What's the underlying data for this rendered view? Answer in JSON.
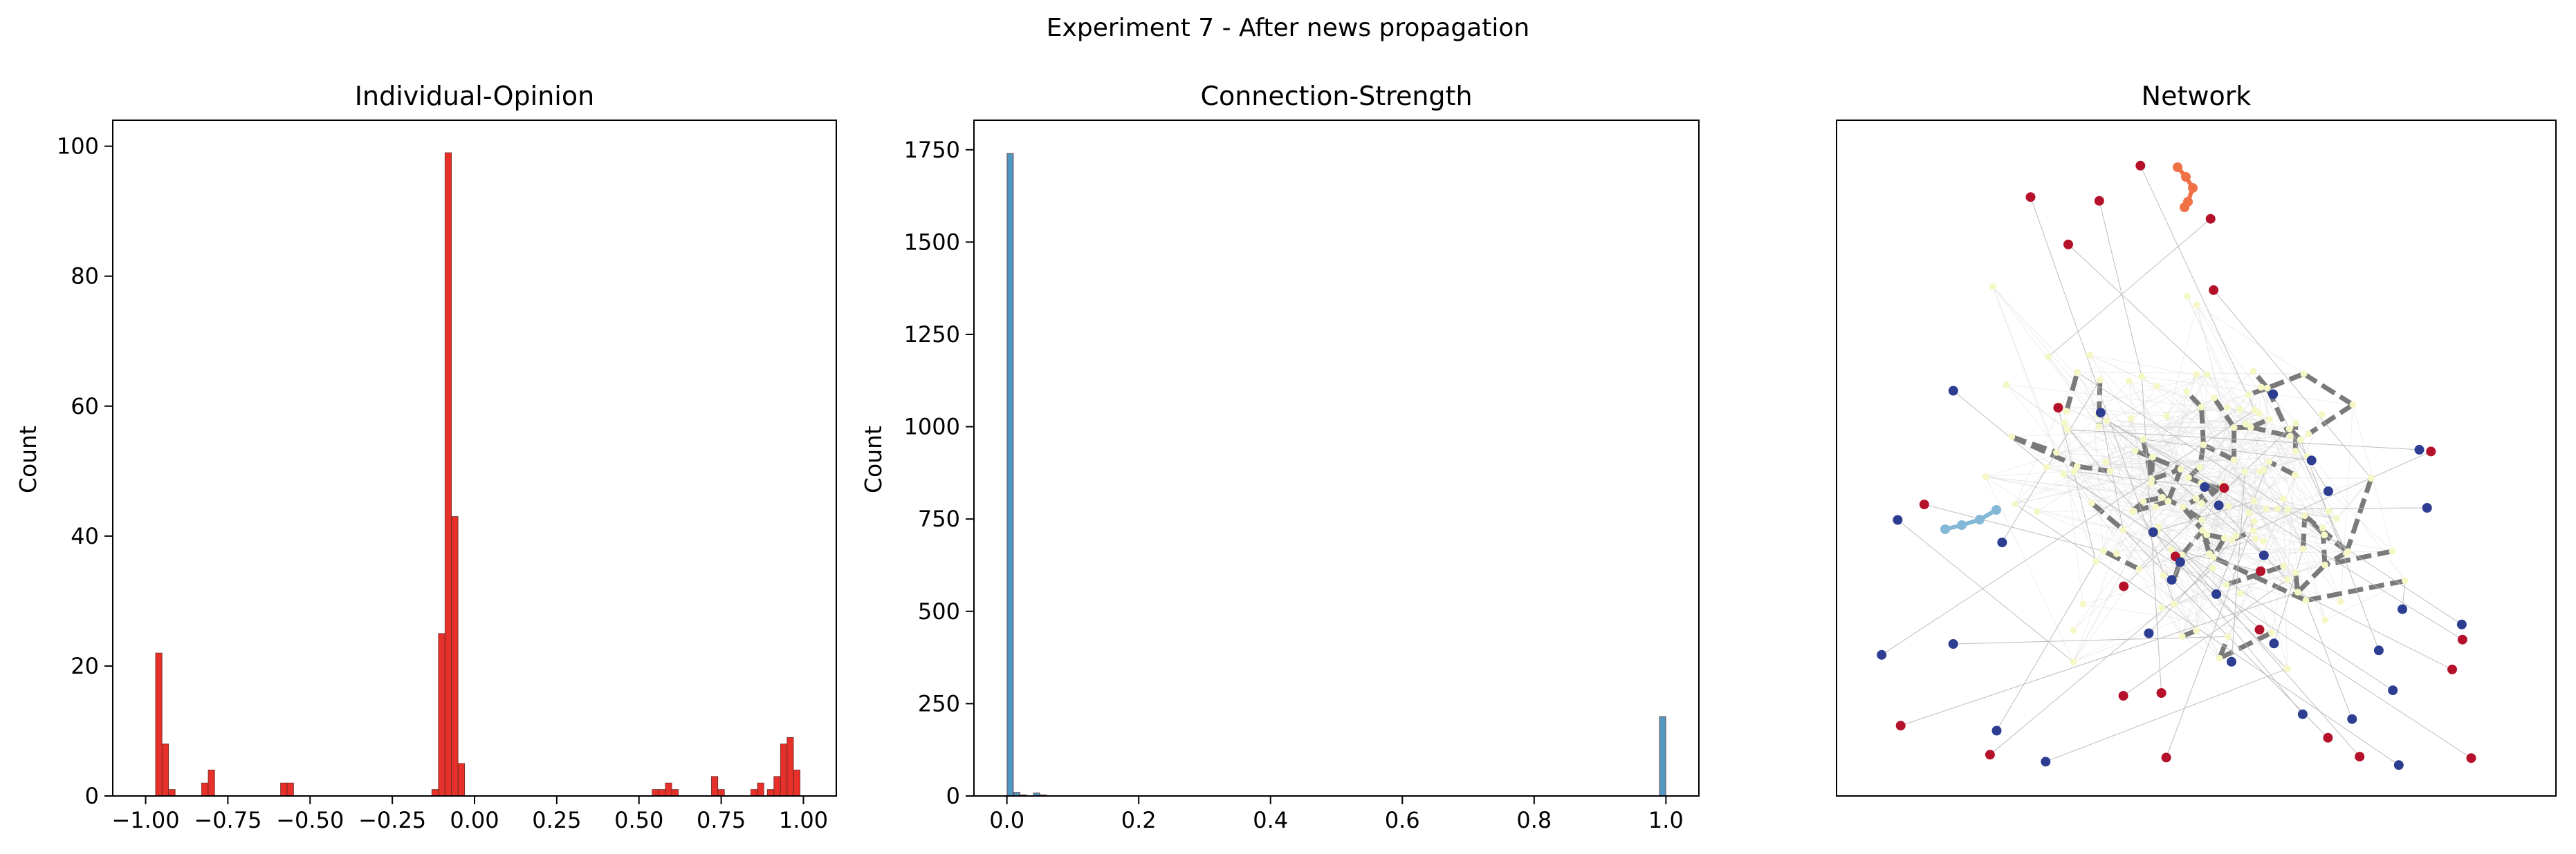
{
  "figure": {
    "suptitle": "Experiment 7 - After news propagation"
  },
  "colors": {
    "opinion_bar": "#e8302a",
    "strength_bar": "#4f98c2",
    "edge_strong": "#7a7a7a",
    "edge_weak": "#d8d8d8",
    "node_positive": "#b5112a",
    "node_negative": "#2c3d92",
    "node_neutral": "#f5f8c6",
    "node_orange": "#f07146",
    "node_lightblue": "#83b8d6"
  },
  "chart_data": [
    {
      "type": "bar",
      "title": "Individual-Opinion",
      "xlabel": "",
      "ylabel": "Count",
      "xlim": [
        -1.1,
        1.1
      ],
      "ylim": [
        0,
        104
      ],
      "xticks": [
        -1.0,
        -0.75,
        -0.5,
        -0.25,
        0.0,
        0.25,
        0.5,
        0.75,
        1.0
      ],
      "xtick_labels": [
        "−1.00",
        "−0.75",
        "−0.50",
        "−0.25",
        "0.00",
        "0.25",
        "0.50",
        "0.75",
        "1.00"
      ],
      "yticks": [
        0,
        20,
        40,
        60,
        80,
        100
      ],
      "ytick_labels": [
        "0",
        "20",
        "40",
        "60",
        "80",
        "100"
      ],
      "bin_width": 0.0195,
      "bins": [
        {
          "x": -0.96,
          "count": 22
        },
        {
          "x": -0.94,
          "count": 8
        },
        {
          "x": -0.92,
          "count": 1
        },
        {
          "x": -0.82,
          "count": 2
        },
        {
          "x": -0.8,
          "count": 4
        },
        {
          "x": -0.58,
          "count": 2
        },
        {
          "x": -0.56,
          "count": 2
        },
        {
          "x": -0.12,
          "count": 1
        },
        {
          "x": -0.1,
          "count": 25
        },
        {
          "x": -0.08,
          "count": 99
        },
        {
          "x": -0.06,
          "count": 43
        },
        {
          "x": -0.04,
          "count": 5
        },
        {
          "x": 0.55,
          "count": 1
        },
        {
          "x": 0.57,
          "count": 1
        },
        {
          "x": 0.59,
          "count": 2
        },
        {
          "x": 0.61,
          "count": 1
        },
        {
          "x": 0.73,
          "count": 3
        },
        {
          "x": 0.75,
          "count": 1
        },
        {
          "x": 0.85,
          "count": 1
        },
        {
          "x": 0.87,
          "count": 2
        },
        {
          "x": 0.9,
          "count": 1
        },
        {
          "x": 0.92,
          "count": 3
        },
        {
          "x": 0.94,
          "count": 8
        },
        {
          "x": 0.96,
          "count": 9
        },
        {
          "x": 0.98,
          "count": 4
        }
      ]
    },
    {
      "type": "bar",
      "title": "Connection-Strength",
      "xlabel": "",
      "ylabel": "Count",
      "xlim": [
        -0.05,
        1.05
      ],
      "ylim": [
        0,
        1830
      ],
      "xticks": [
        0.0,
        0.2,
        0.4,
        0.6,
        0.8,
        1.0
      ],
      "xtick_labels": [
        "0.0",
        "0.2",
        "0.4",
        "0.6",
        "0.8",
        "1.0"
      ],
      "yticks": [
        0,
        250,
        500,
        750,
        1000,
        1250,
        1500,
        1750
      ],
      "ytick_labels": [
        "0",
        "250",
        "500",
        "750",
        "1000",
        "1250",
        "1500",
        "1750"
      ],
      "bin_width": 0.0095,
      "bins": [
        {
          "x": 0.005,
          "count": 1740
        },
        {
          "x": 0.015,
          "count": 10
        },
        {
          "x": 0.025,
          "count": 3
        },
        {
          "x": 0.045,
          "count": 8
        },
        {
          "x": 0.055,
          "count": 3
        },
        {
          "x": 0.995,
          "count": 215
        }
      ]
    },
    {
      "type": "network",
      "title": "Network",
      "node_groups": [
        {
          "group": "positive",
          "count": 24
        },
        {
          "group": "negative",
          "count": 30
        },
        {
          "group": "neutral",
          "count": 150
        },
        {
          "group": "orange",
          "count": 5
        },
        {
          "group": "lightblue",
          "count": 4
        }
      ]
    }
  ]
}
